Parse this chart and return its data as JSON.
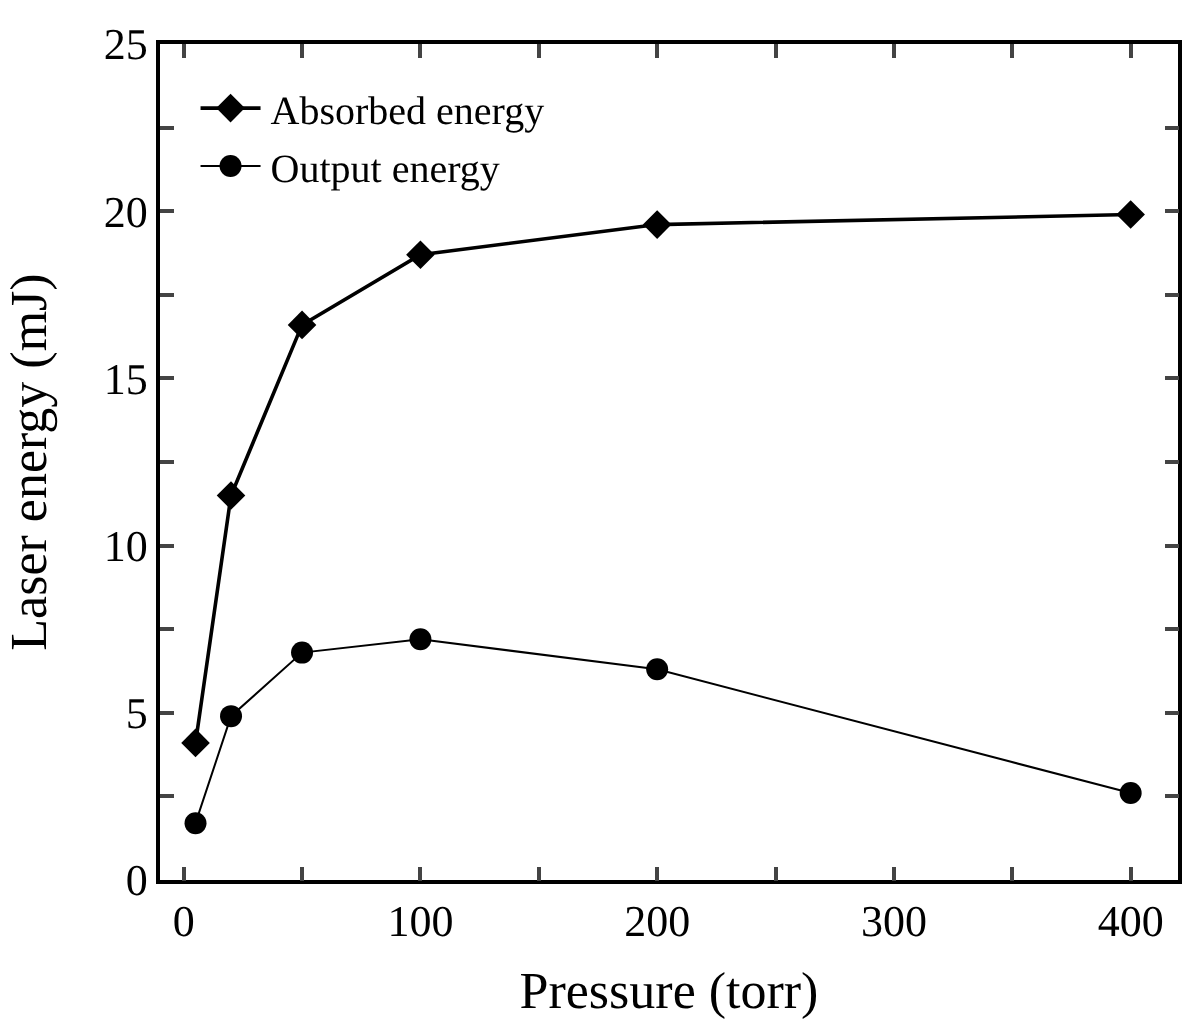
{
  "chart_data": {
    "type": "line",
    "xlabel": "Pressure (torr)",
    "ylabel": "Laser energy (mJ)",
    "x": [
      5,
      20,
      50,
      100,
      200,
      400
    ],
    "series": [
      {
        "name": "Absorbed energy",
        "color": "#000000",
        "marker": "diamond",
        "values": [
          4.1,
          11.5,
          16.6,
          18.7,
          19.6,
          19.9
        ]
      },
      {
        "name": "Output energy",
        "color": "#000000",
        "marker": "circle",
        "values": [
          1.7,
          4.9,
          6.8,
          7.2,
          6.3,
          2.6
        ]
      }
    ],
    "xlim": [
      -10,
      420
    ],
    "xticks": [
      0,
      {
        "value": 50,
        "label": null
      },
      100,
      {
        "value": 150,
        "label": null
      },
      200,
      {
        "value": 250,
        "label": null
      },
      300,
      {
        "value": 350,
        "label": null
      },
      400
    ],
    "ylim": [
      0,
      25
    ],
    "yticks": [
      0,
      {
        "value": 2.5,
        "label": null
      },
      5,
      {
        "value": 7.5,
        "label": null
      },
      10,
      {
        "value": 12.5,
        "label": null
      },
      15,
      {
        "value": 17.5,
        "label": null
      },
      20,
      {
        "value": 22.5,
        "label": null
      },
      25
    ],
    "grid": false,
    "legend": "top left",
    "line_style": "solid"
  }
}
